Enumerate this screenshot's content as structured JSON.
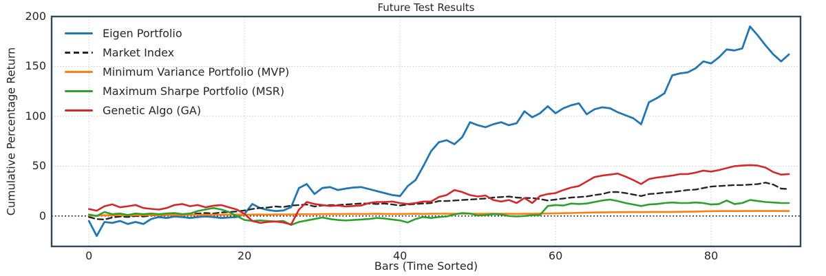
{
  "title": "Future Test Results",
  "xlabel": "Bars (Time Sorted)",
  "ylabel": "Cumulative Percentage Return",
  "colors": {
    "background": "#ffffff",
    "spine": "#2d4a56",
    "grid": "#c9c9c9",
    "zero_line": "#1a1a1a",
    "text": "#262626"
  },
  "legend": {
    "position": "upper left",
    "frame": false
  },
  "chart_data": {
    "type": "line",
    "title": "Future Test Results",
    "xlabel": "Bars (Time Sorted)",
    "ylabel": "Cumulative Percentage Return",
    "xlim": [
      -4.8,
      91.5
    ],
    "ylim": [
      -30.5,
      200
    ],
    "x_ticks": [
      0,
      20,
      40,
      60,
      80
    ],
    "y_ticks": [
      0,
      50,
      100,
      150,
      200
    ],
    "grid": true,
    "grid_style": "dotted",
    "zero_line": true,
    "legend_position": "upper left",
    "x_start": 0,
    "x_step": 1,
    "series": [
      {
        "name": "Eigen Portfolio",
        "color": "#1f77b4",
        "style": "solid",
        "width": 2.8,
        "values": [
          -5,
          -20,
          -6,
          -7,
          -5,
          -8,
          -6,
          -8,
          -3,
          -1,
          -2,
          -0.5,
          -1,
          -2,
          -1,
          -0.5,
          -1,
          -2,
          -1.5,
          -1,
          2,
          12,
          8,
          6,
          5,
          5.5,
          9,
          28,
          32,
          22,
          28,
          29,
          26,
          27.5,
          28.5,
          29,
          27,
          25,
          23,
          21,
          20,
          30,
          36,
          50,
          65,
          74,
          76,
          72,
          79,
          94,
          91,
          89,
          92,
          94,
          91,
          93,
          105,
          99,
          103,
          110,
          103,
          108,
          111,
          113,
          102,
          107,
          109,
          108,
          104,
          101,
          98,
          92,
          114,
          118,
          123,
          141,
          143,
          144,
          148,
          155,
          153,
          159,
          167,
          166,
          168,
          190,
          181,
          171,
          162,
          155,
          162
        ]
      },
      {
        "name": "Market Index",
        "color": "#262626",
        "style": "dashed",
        "width": 2.4,
        "values": [
          -1,
          -3,
          -3.5,
          -1.5,
          -0.5,
          -1,
          0,
          -0.5,
          0.5,
          1,
          0.5,
          2,
          1,
          2,
          2.5,
          3,
          2.5,
          3.5,
          4,
          4.5,
          5.5,
          7,
          8,
          8.5,
          9.5,
          9,
          10.5,
          11,
          11.5,
          9.5,
          10.5,
          11,
          11,
          11.5,
          12,
          12.5,
          12.5,
          12,
          12.5,
          11.5,
          10.5,
          11.5,
          12,
          12.5,
          13,
          15,
          15,
          15.5,
          16,
          16.5,
          17,
          17.5,
          18.5,
          19,
          19.5,
          18.5,
          18,
          18,
          17,
          15.5,
          16.5,
          17.5,
          18.5,
          19,
          19.5,
          21,
          22,
          24,
          24,
          23,
          21.5,
          20,
          22,
          22.5,
          23.5,
          24,
          25,
          26,
          26.5,
          28,
          29.5,
          30,
          30.5,
          31,
          31,
          31.5,
          32,
          33.5,
          31.5,
          27.5,
          27
        ]
      },
      {
        "name": "Minimum Variance Portfolio (MVP)",
        "color": "#ff7f0e",
        "style": "solid",
        "width": 2.6,
        "values": [
          0.5,
          0.3,
          0.8,
          0.6,
          0.8,
          0.7,
          0.9,
          0.8,
          1,
          0.9,
          1,
          1.1,
          1,
          1.2,
          1.1,
          1.2,
          1.3,
          1.2,
          1.3,
          1.4,
          1.3,
          1.4,
          1.5,
          1.4,
          1.5,
          1.6,
          1.5,
          1.7,
          1.8,
          1.7,
          1.9,
          2,
          1.9,
          2,
          2.1,
          2,
          2.1,
          2.2,
          2.1,
          2,
          2,
          2.1,
          2.2,
          2.1,
          2.2,
          2.3,
          2.2,
          2.3,
          2.4,
          2.3,
          2.2,
          2.3,
          2.4,
          2.3,
          2.2,
          2.1,
          2.2,
          2.3,
          2.4,
          2.5,
          2.6,
          2.8,
          3,
          3.2,
          3.4,
          3.5,
          3.6,
          3.7,
          3.8,
          3.9,
          4,
          3.9,
          4,
          4.1,
          4,
          4.1,
          4.2,
          4.3,
          4.4,
          4.6,
          4.8,
          4.9,
          5,
          4.9,
          5,
          5,
          5.1,
          5,
          5.1,
          5,
          5
        ]
      },
      {
        "name": "Maximum Sharpe Portfolio (MSR)",
        "color": "#2ca02c",
        "style": "solid",
        "width": 2.6,
        "values": [
          1.5,
          0,
          4,
          1.8,
          2.5,
          1,
          2.5,
          1.8,
          2.5,
          1.8,
          2.5,
          3,
          1.8,
          2.5,
          5,
          6.5,
          8,
          6.5,
          4,
          0,
          -4,
          -5,
          -4.5,
          -5,
          -5.5,
          -5,
          -9,
          -6,
          -4.5,
          -3,
          -1.5,
          -3,
          -4,
          -4.5,
          -4,
          -3.5,
          -3,
          -2,
          -2.5,
          -3.5,
          -4.5,
          -6.5,
          -3,
          -1,
          -2,
          -1,
          -0.5,
          1.5,
          3,
          2.5,
          0.5,
          1,
          1.8,
          1.5,
          0,
          -0.5,
          0,
          0.8,
          1,
          10,
          11,
          10.5,
          12.5,
          12,
          12.5,
          14,
          15.5,
          16.5,
          15,
          13,
          11.5,
          10,
          11.5,
          12,
          13,
          13.5,
          13,
          13,
          13.5,
          13,
          11.5,
          12,
          15.5,
          12,
          13,
          16,
          15,
          14,
          13.5,
          13,
          13
        ]
      },
      {
        "name": "Genetic Algo (GA)",
        "color": "#d62728",
        "style": "solid",
        "width": 2.6,
        "values": [
          7,
          5.3,
          9.8,
          11.7,
          8.7,
          9.8,
          11,
          8,
          7.1,
          6.4,
          8,
          11,
          12,
          9.8,
          11,
          8.7,
          10.3,
          11,
          8.7,
          6.5,
          2,
          -5,
          -7,
          -6,
          -5.5,
          -6.5,
          -8.5,
          6.4,
          14,
          12,
          11,
          10,
          10.5,
          9.5,
          10,
          10.5,
          13,
          14,
          14,
          14.5,
          13,
          12,
          13,
          14.5,
          14.5,
          19,
          21,
          26,
          24,
          21,
          19.5,
          20.5,
          16,
          14.5,
          16,
          13,
          18,
          13,
          20,
          22,
          23,
          26,
          28.5,
          30,
          34.5,
          39,
          40.5,
          41.5,
          42.5,
          39.5,
          36,
          32,
          37,
          38.5,
          39.5,
          40.5,
          42,
          42,
          43.5,
          45.5,
          44.5,
          46,
          48,
          50,
          50.5,
          51,
          50.5,
          48.5,
          44,
          41.5,
          42
        ]
      }
    ]
  }
}
